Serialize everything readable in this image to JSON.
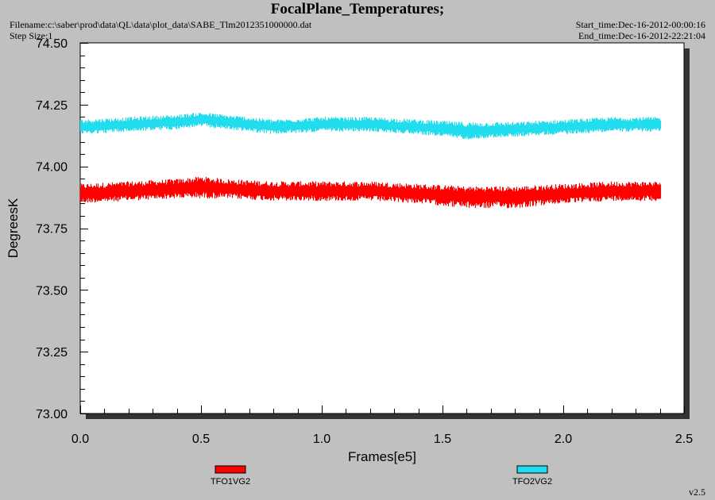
{
  "header": {
    "title": "FocalPlane_Temperatures;",
    "filename_line": "Filename:c:\\saber\\prod\\data\\QL\\data\\plot_data\\SABE_Tlm2012351000000.dat",
    "step_size_line": "Step Size:1",
    "start_time_line": "Start_time:Dec-16-2012-00:00:16",
    "end_time_line": "End_time:Dec-16-2012-22:21:04"
  },
  "footer": {
    "version": "v2.5"
  },
  "colors": {
    "series1": "#ff0000",
    "series2": "#22ddee",
    "plot_bg": "#ffffff",
    "frame_shadow": "#333333"
  },
  "chart_data": {
    "type": "line",
    "title": "FocalPlane_Temperatures;",
    "xlabel": "Frames[e5]",
    "ylabel": "DegreesK",
    "xlim": [
      0.0,
      2.5
    ],
    "ylim": [
      73.0,
      74.5
    ],
    "x_ticks": [
      "0.0",
      "0.5",
      "1.0",
      "1.5",
      "2.0",
      "2.5"
    ],
    "y_ticks": [
      "73.00",
      "73.25",
      "73.50",
      "73.75",
      "74.00",
      "74.25",
      "74.50"
    ],
    "grid": false,
    "legend_position": "bottom",
    "series": [
      {
        "name": "TFO1VG2",
        "color": "#ff0000",
        "x": [
          0.0,
          0.2,
          0.4,
          0.5,
          0.6,
          0.8,
          1.0,
          1.2,
          1.4,
          1.6,
          1.8,
          2.0,
          2.2,
          2.4
        ],
        "mean": [
          73.89,
          73.9,
          73.91,
          73.92,
          73.91,
          73.9,
          73.9,
          73.9,
          73.89,
          73.88,
          73.88,
          73.89,
          73.9,
          73.9
        ],
        "min": [
          73.85,
          73.86,
          73.87,
          73.87,
          73.87,
          73.86,
          73.86,
          73.86,
          73.85,
          73.83,
          73.83,
          73.85,
          73.86,
          73.86
        ],
        "max": [
          73.93,
          73.94,
          73.95,
          73.96,
          73.95,
          73.94,
          73.94,
          73.94,
          73.93,
          73.92,
          73.92,
          73.93,
          73.94,
          73.94
        ]
      },
      {
        "name": "TFO2VG2",
        "color": "#22ddee",
        "x": [
          0.0,
          0.2,
          0.4,
          0.5,
          0.6,
          0.8,
          1.0,
          1.2,
          1.4,
          1.6,
          1.8,
          2.0,
          2.2,
          2.4
        ],
        "mean": [
          74.16,
          74.17,
          74.18,
          74.19,
          74.18,
          74.16,
          74.17,
          74.17,
          74.16,
          74.14,
          74.15,
          74.16,
          74.17,
          74.17
        ],
        "min": [
          74.13,
          74.14,
          74.15,
          74.16,
          74.15,
          74.13,
          74.14,
          74.14,
          74.13,
          74.11,
          74.12,
          74.13,
          74.14,
          74.14
        ],
        "max": [
          74.19,
          74.2,
          74.21,
          74.22,
          74.21,
          74.19,
          74.2,
          74.2,
          74.19,
          74.18,
          74.18,
          74.19,
          74.2,
          74.2
        ]
      }
    ]
  }
}
